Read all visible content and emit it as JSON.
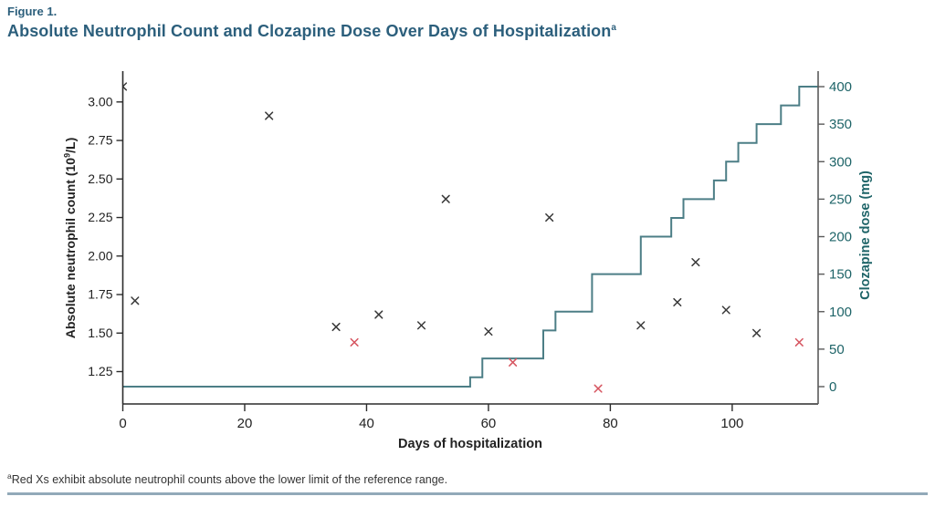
{
  "figure": {
    "label": "Figure 1.",
    "title": "Absolute Neutrophil Count and Clozapine Dose Over Days of Hospitalization",
    "title_superscript": "a"
  },
  "footnote": {
    "superscript": "a",
    "text": "Red Xs exhibit absolute neutrophil counts above the lower limit of the reference range."
  },
  "colors": {
    "heading_text": "#2C5F7C",
    "axis_line": "#2b2b2b",
    "right_axis_line": "#5a5a5a",
    "tick_label": "#222222",
    "teal_text": "#1E6468",
    "step_line": "#4C7E86",
    "black_marker": "#3a3a3a",
    "red_marker": "#D65560",
    "footnote_text": "#333333",
    "bottom_rule": "#92A9B9"
  },
  "chart_data": {
    "type": "composite-scatter-step",
    "title": "Absolute Neutrophil Count and Clozapine Dose Over Days of Hospitalization",
    "grid": false,
    "legend": "none",
    "x_axis": {
      "label": "Days of hospitalization",
      "ticks": [
        0,
        20,
        40,
        60,
        80,
        100
      ],
      "tick_labels": [
        "0",
        "20",
        "40",
        "60",
        "80",
        "100"
      ],
      "range": [
        0,
        114.1
      ]
    },
    "y_left_axis": {
      "label_pre": "Absolute neutrophil count (10",
      "label_sup": "9",
      "label_post": "/L)",
      "ticks": [
        3.0,
        2.75,
        2.5,
        2.25,
        2.0,
        1.75,
        1.5,
        1.25
      ],
      "tick_labels": [
        "3.00",
        "2.75",
        "2.50",
        "2.25",
        "2.00",
        "1.75",
        "1.50",
        "1.25"
      ],
      "range": [
        1.04,
        3.2
      ]
    },
    "y_right_axis": {
      "label": "Clozapine dose (mg)",
      "ticks": [
        400,
        350,
        300,
        250,
        200,
        150,
        100,
        50,
        0
      ],
      "tick_labels": [
        "400",
        "350",
        "300",
        "250",
        "200",
        "150",
        "100",
        "50",
        "0"
      ],
      "range": [
        -23.1,
        420.7
      ]
    },
    "series": [
      {
        "name": "Absolute neutrophil count (black X)",
        "type": "scatter",
        "marker": "x",
        "axis": "left",
        "color_key": "black_marker",
        "points": [
          [
            0,
            3.1
          ],
          [
            2,
            1.71
          ],
          [
            24,
            2.91
          ],
          [
            35,
            1.54
          ],
          [
            42,
            1.62
          ],
          [
            49,
            1.55
          ],
          [
            53,
            2.37
          ],
          [
            60,
            1.51
          ],
          [
            70,
            2.25
          ],
          [
            85,
            1.55
          ],
          [
            91,
            1.7
          ],
          [
            94,
            1.96
          ],
          [
            99,
            1.65
          ],
          [
            104,
            1.5
          ]
        ]
      },
      {
        "name": "Absolute neutrophil count above lower limit of reference range (red X)",
        "type": "scatter",
        "marker": "x",
        "axis": "left",
        "color_key": "red_marker",
        "points": [
          [
            38,
            1.44
          ],
          [
            64,
            1.31
          ],
          [
            78,
            1.14
          ],
          [
            111,
            1.44
          ]
        ]
      },
      {
        "name": "Clozapine dose",
        "type": "step",
        "axis": "right",
        "color_key": "step_line",
        "steps": [
          [
            0,
            0
          ],
          [
            57,
            12.5
          ],
          [
            59,
            37.5
          ],
          [
            69,
            75
          ],
          [
            71,
            100
          ],
          [
            77,
            150
          ],
          [
            85,
            200
          ],
          [
            90,
            225
          ],
          [
            92,
            250
          ],
          [
            97,
            275
          ],
          [
            99,
            300
          ],
          [
            101,
            325
          ],
          [
            104,
            350
          ],
          [
            108,
            375
          ],
          [
            111,
            400
          ]
        ],
        "end_x": 114.1
      }
    ]
  }
}
